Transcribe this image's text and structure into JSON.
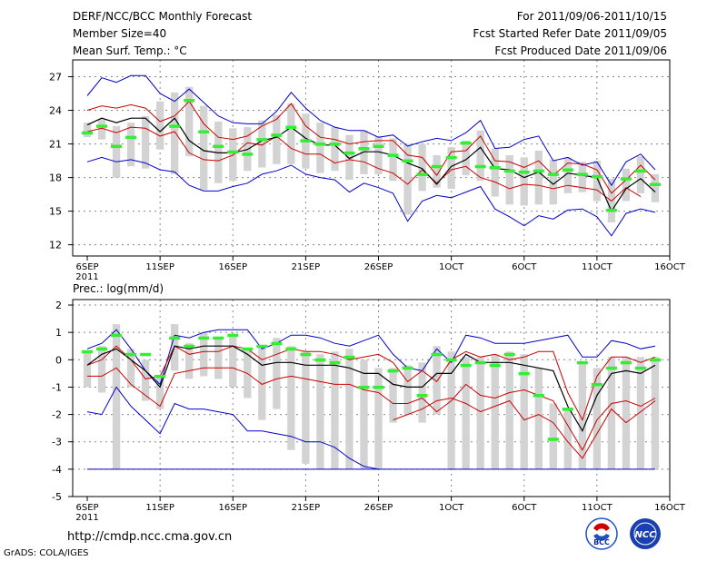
{
  "header": {
    "title": "DERF/NCC/BCC Monthly Forecast",
    "member_size": "Member Size=40",
    "variable": "Mean Surf. Temp.: °C",
    "period": "For 2011/09/06-2011/10/15",
    "refer_date": "Fcst Started Refer Date 2011/09/05",
    "produced_date": "Fcst Produced Date 2011/09/06"
  },
  "footer": {
    "url": "http://cmdp.ncc.cma.gov.cn",
    "credit": "GrADS: COLA/IGES",
    "logo_bcc": "BCC",
    "logo_ncc": "NCC"
  },
  "colors": {
    "box": "#d3d3d3",
    "obs": "#33ee33",
    "mean": "#000000",
    "inner": "#cc0000",
    "outer": "#0000cc",
    "grid": "#888888"
  },
  "chart_data": [
    {
      "type": "line",
      "title": "Mean Surf. Temp.: °C",
      "days": 40,
      "xticks": [
        "6SEP",
        "11SEP",
        "16SEP",
        "21SEP",
        "26SEP",
        "1OCT",
        "6OCT",
        "11OCT",
        "16OCT"
      ],
      "xtick_day": [
        1,
        6,
        11,
        16,
        21,
        26,
        31,
        36,
        41
      ],
      "year_label": "2011",
      "ylim": [
        11,
        28.5
      ],
      "yticks": [
        12,
        15,
        18,
        21,
        24,
        27
      ],
      "series": [
        {
          "name": "max",
          "values": [
            25.3,
            26.9,
            26.5,
            27.1,
            27.1,
            25.5,
            24.8,
            25.9,
            24.7,
            23.5,
            22.9,
            22.8,
            22.8,
            23.9,
            25.6,
            24.2,
            23.1,
            22.5,
            22.2,
            22.2,
            21.6,
            21.8,
            20.8,
            21.2,
            21.5,
            21.3,
            22.0,
            23.1,
            20.6,
            20.7,
            21.4,
            21.7,
            19.5,
            19.8,
            19.1,
            19.4,
            17.3,
            19.4,
            20.1,
            18.7
          ]
        },
        {
          "name": "upper",
          "values": [
            24.0,
            24.4,
            24.2,
            24.5,
            24.2,
            23.0,
            23.5,
            24.8,
            22.8,
            21.6,
            21.4,
            21.7,
            22.6,
            23.2,
            24.6,
            22.6,
            21.6,
            21.4,
            21.0,
            21.2,
            21.3,
            21.3,
            20.0,
            19.8,
            18.2,
            20.3,
            20.4,
            21.7,
            19.5,
            19.4,
            18.9,
            19.5,
            18.2,
            19.3,
            19.2,
            18.7,
            16.6,
            17.8,
            19.1,
            17.8
          ]
        },
        {
          "name": "mean",
          "values": [
            22.7,
            23.3,
            22.9,
            23.3,
            23.3,
            22.1,
            23.3,
            21.3,
            20.4,
            20.2,
            20.2,
            20.5,
            21.3,
            21.6,
            22.5,
            21.5,
            20.9,
            20.9,
            19.7,
            20.3,
            20.3,
            20.0,
            19.3,
            18.8,
            17.4,
            19.0,
            19.6,
            20.7,
            18.8,
            18.7,
            18.0,
            18.5,
            17.4,
            18.4,
            18.2,
            18.0,
            15.0,
            17.0,
            17.9,
            16.7
          ]
        },
        {
          "name": "lower",
          "values": [
            22.1,
            22.4,
            22.0,
            22.5,
            22.4,
            21.7,
            22.1,
            20.2,
            19.6,
            19.5,
            20.0,
            21.1,
            20.9,
            21.7,
            20.6,
            20.1,
            20.1,
            19.3,
            19.6,
            19.4,
            18.8,
            18.4,
            17.4,
            18.7,
            17.5,
            18.7,
            19.0,
            18.0,
            17.6,
            17.0,
            17.4,
            17.3,
            17.0,
            17.3,
            17.1,
            16.9,
            15.9,
            17.1,
            16.3,
            null
          ]
        },
        {
          "name": "min",
          "values": [
            19.4,
            19.8,
            19.4,
            19.6,
            19.3,
            18.7,
            18.5,
            17.3,
            16.8,
            16.8,
            17.2,
            17.5,
            18.3,
            18.6,
            19.1,
            18.3,
            18.0,
            17.8,
            16.7,
            17.5,
            17.1,
            16.6,
            14.1,
            15.9,
            16.4,
            16.2,
            16.7,
            17.2,
            15.2,
            14.5,
            13.7,
            14.6,
            14.3,
            15.1,
            15.2,
            14.5,
            12.8,
            14.8,
            15.2,
            14.9
          ]
        },
        {
          "name": "obs",
          "values": [
            22.0,
            22.6,
            20.8,
            21.6,
            null,
            null,
            22.6,
            24.9,
            22.1,
            20.8,
            20.3,
            20.1,
            21.4,
            21.8,
            22.5,
            21.3,
            21.0,
            21.0,
            20.2,
            20.6,
            20.8,
            20.0,
            19.5,
            18.3,
            19.0,
            19.8,
            21.1,
            19.0,
            18.9,
            18.6,
            18.5,
            18.6,
            18.3,
            18.7,
            18.3,
            18.1,
            15.1,
            17.9,
            18.6,
            17.4
          ]
        },
        {
          "name": "box_high",
          "values": [
            22.9,
            23.2,
            22.6,
            22.9,
            23.5,
            24.8,
            25.6,
            26.1,
            24.4,
            23.0,
            22.4,
            22.5,
            23.1,
            23.6,
            24.6,
            23.7,
            22.9,
            22.5,
            21.8,
            22.2,
            21.7,
            21.5,
            21.0,
            21.0,
            20.0,
            20.7,
            21.3,
            22.2,
            20.6,
            20.0,
            19.8,
            20.4,
            19.6,
            19.8,
            19.4,
            19.5,
            17.9,
            18.8,
            19.9,
            18.3
          ]
        },
        {
          "name": "box_low",
          "values": [
            21.6,
            21.4,
            18.0,
            19.0,
            18.8,
            20.5,
            18.3,
            19.9,
            16.9,
            17.5,
            17.7,
            18.6,
            18.9,
            19.2,
            19.2,
            18.8,
            18.4,
            18.6,
            17.8,
            18.3,
            18.3,
            17.7,
            14.7,
            16.8,
            17.1,
            17.0,
            18.2,
            17.7,
            16.3,
            15.6,
            15.5,
            15.6,
            15.6,
            16.6,
            16.7,
            15.9,
            14.0,
            15.9,
            16.6,
            15.8
          ]
        }
      ]
    },
    {
      "type": "line",
      "title": "Prec.: log(mm/d)",
      "days": 40,
      "xticks": [
        "6SEP",
        "11SEP",
        "16SEP",
        "21SEP",
        "26SEP",
        "1OCT",
        "6OCT",
        "11OCT",
        "16OCT"
      ],
      "xtick_day": [
        1,
        6,
        11,
        16,
        21,
        26,
        31,
        36,
        41
      ],
      "year_label": "2011",
      "ylim": [
        -5,
        2.2
      ],
      "yticks": [
        -5,
        -4,
        -3,
        -2,
        -1,
        0,
        1,
        2
      ],
      "series": [
        {
          "name": "max",
          "values": [
            0.4,
            0.6,
            1.1,
            0.4,
            -0.4,
            -0.9,
            0.9,
            0.8,
            1.0,
            1.1,
            1.1,
            1.1,
            0.4,
            0.6,
            0.9,
            0.9,
            0.8,
            0.6,
            0.5,
            0.7,
            0.9,
            0.2,
            -0.3,
            -0.4,
            0.4,
            -0.1,
            0.9,
            0.8,
            0.6,
            0.6,
            0.6,
            0.7,
            0.8,
            0.9,
            0.1,
            0.1,
            0.7,
            0.6,
            0.4,
            0.5
          ]
        },
        {
          "name": "upper",
          "values": [
            -0.2,
            0.0,
            0.5,
            0.0,
            -0.7,
            -0.6,
            0.5,
            0.2,
            0.3,
            0.3,
            0.5,
            0.4,
            0.0,
            0.2,
            0.4,
            0.3,
            0.3,
            0.2,
            0.0,
            0.1,
            0.2,
            -0.1,
            -0.8,
            -0.4,
            -0.8,
            0.0,
            0.3,
            0.1,
            0.2,
            0.0,
            0.1,
            0.3,
            0.3,
            -1.2,
            -2.2,
            -0.6,
            0.1,
            0.1,
            -0.1,
            0.1
          ]
        },
        {
          "name": "mean",
          "values": [
            -0.2,
            0.2,
            0.4,
            0.0,
            -0.4,
            -1.0,
            0.5,
            0.4,
            0.5,
            0.5,
            0.5,
            0.2,
            -0.2,
            -0.1,
            -0.1,
            -0.2,
            -0.2,
            -0.2,
            -0.3,
            -0.5,
            -0.5,
            -0.9,
            -1.0,
            -1.0,
            -0.5,
            -0.5,
            0.2,
            -0.1,
            -0.1,
            -0.1,
            -0.2,
            -0.3,
            -0.4,
            -1.7,
            -2.6,
            -1.3,
            -0.5,
            -0.4,
            -0.5,
            -0.2
          ]
        },
        {
          "name": "lower",
          "values": [
            -0.6,
            -0.6,
            -0.3,
            -0.9,
            -1.3,
            -1.7,
            -0.5,
            -0.4,
            -0.3,
            -0.3,
            -0.3,
            -0.5,
            -0.9,
            -0.7,
            -0.6,
            -0.7,
            -0.8,
            -0.9,
            -0.9,
            -1.1,
            -1.2,
            -1.6,
            -1.6,
            -1.4,
            -1.9,
            -1.5,
            -0.9,
            -1.3,
            -1.4,
            -1.2,
            -1.1,
            -1.3,
            -1.5,
            -2.4,
            -3.3,
            -2.2,
            -1.6,
            -1.5,
            -1.7,
            -1.4
          ]
        },
        {
          "name": "min",
          "values": [
            -1.9,
            -2.0,
            -1.0,
            -1.7,
            -2.2,
            -2.7,
            -1.6,
            -1.8,
            -1.8,
            -1.9,
            -2.0,
            -2.6,
            -2.6,
            -2.7,
            -2.8,
            -3.0,
            -3.0,
            -3.2,
            -3.6,
            -3.9,
            -4.0,
            null,
            null,
            null,
            null,
            null,
            null,
            null,
            null,
            null,
            null,
            null,
            null,
            null,
            null,
            null,
            null,
            null,
            null,
            null
          ]
        },
        {
          "name": "zero_floor",
          "values": [
            -4.0,
            -4.0,
            -4.0,
            -4.0,
            -4.0,
            -4.0,
            -4.0,
            -4.0,
            -4.0,
            -4.0,
            -4.0,
            -4.0,
            -4.0,
            -4.0,
            -4.0,
            -4.0,
            -4.0,
            -4.0,
            -4.0,
            -4.0,
            -4.0,
            -4.0,
            -4.0,
            -4.0,
            -4.0,
            -4.0,
            -4.0,
            -4.0,
            -4.0,
            -4.0,
            -4.0,
            -4.0,
            -4.0,
            -4.0,
            -4.0,
            -4.0,
            -4.0,
            -4.0,
            -4.0,
            -4.0
          ]
        },
        {
          "name": "lower_tail",
          "values": [
            null,
            null,
            null,
            null,
            null,
            null,
            null,
            null,
            null,
            null,
            null,
            null,
            null,
            null,
            null,
            null,
            null,
            null,
            null,
            null,
            null,
            -2.2,
            -2.0,
            -1.8,
            -1.5,
            -1.4,
            -1.6,
            -1.9,
            -1.7,
            -1.5,
            -2.2,
            -2.0,
            -2.3,
            -3.0,
            -3.6,
            -2.7,
            -1.8,
            -2.3,
            -1.9,
            -1.5
          ]
        },
        {
          "name": "obs",
          "values": [
            0.3,
            0.4,
            0.9,
            0.2,
            0.2,
            -0.6,
            0.8,
            0.5,
            0.8,
            0.8,
            0.9,
            0.4,
            0.5,
            0.6,
            0.4,
            0.2,
            0.0,
            -0.1,
            0.1,
            -1.0,
            -1.0,
            -0.4,
            -0.3,
            -1.3,
            0.2,
            0.0,
            -0.2,
            -0.1,
            -0.2,
            0.2,
            -0.5,
            -1.3,
            -2.9,
            -1.8,
            -0.1,
            -0.9,
            -0.3,
            -0.1,
            -0.3,
            0.0
          ]
        },
        {
          "name": "box_high",
          "values": [
            0.3,
            0.5,
            1.3,
            0.4,
            0.0,
            -0.6,
            1.3,
            0.6,
            1.0,
            0.8,
            0.9,
            0.4,
            0.5,
            0.8,
            0.5,
            0.3,
            0.2,
            0.3,
            0.4,
            0.0,
            -0.3,
            -0.3,
            -0.2,
            -0.1,
            0.5,
            0.3,
            0.1,
            0.1,
            0.2,
            0.3,
            0.2,
            -0.3,
            -1.6,
            -1.8,
            -0.1,
            -0.3,
            0.1,
            0.1,
            0.1,
            0.1
          ]
        },
        {
          "name": "box_low",
          "values": [
            -1.0,
            -1.2,
            -4.0,
            -1.0,
            -1.5,
            -1.8,
            -0.4,
            -0.7,
            -0.6,
            -0.7,
            -1.0,
            -1.4,
            -2.2,
            -1.8,
            -3.3,
            -3.8,
            -4.0,
            -4.0,
            -4.0,
            -4.0,
            -4.0,
            -2.3,
            -2.0,
            -2.3,
            -2.0,
            -4.0,
            -4.0,
            -4.0,
            -4.0,
            -4.0,
            -4.0,
            -4.0,
            -4.0,
            -4.0,
            -4.0,
            -4.0,
            -4.0,
            -4.0,
            -4.0,
            -4.0
          ]
        }
      ]
    }
  ]
}
